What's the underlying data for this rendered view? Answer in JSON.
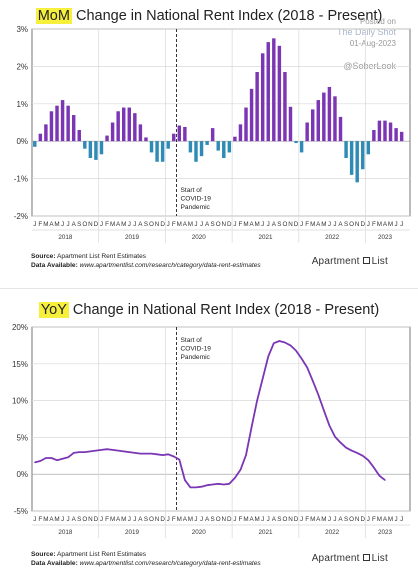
{
  "mom": {
    "title_highlight": "MoM",
    "title_rest": " Change in National Rent Index (2018 - Present)",
    "credit": [
      "Posted on",
      "The Daily Shot",
      "01-Aug-2023"
    ],
    "handle": "@SoberLook",
    "source_line1_bold": "Source:",
    "source_line1": " Apartment List Rent Estimates",
    "source_line2_bold": "Data Available:",
    "source_line2": " www.apartmentlist.com/research/category/data-rent-estimates",
    "logo_left": "Apartment",
    "logo_right": "List"
  },
  "yoy": {
    "title_highlight": "YoY",
    "title_rest": " Change in National Rent Index (2018 - Present)",
    "source_line1_bold": "Source:",
    "source_line1": " Apartment List Rent Estimates",
    "source_line2_bold": "Data Available:",
    "source_line2": " www.apartmentlist.com/research/category/data-rent-estimates",
    "logo_left": "Apartment",
    "logo_right": "List"
  },
  "colors": {
    "positive": "#7b36b4",
    "negative": "#2e8bb5",
    "line": "#7b36b4",
    "highlight": "#f6f03d",
    "grid": "#d9d9d9",
    "dashed": "#222222"
  },
  "chart_data": [
    {
      "type": "bar",
      "title": "MoM Change in National Rent Index (2018 - Present)",
      "annotation": [
        "Start of",
        "COVID-19",
        "Pandemic"
      ],
      "month_letters": [
        "J",
        "F",
        "M",
        "A",
        "M",
        "J",
        "J",
        "A",
        "S",
        "O",
        "N",
        "D"
      ],
      "years": [
        "2018",
        "2019",
        "2020",
        "2021",
        "2022",
        "2023"
      ],
      "x_start": "2018-01",
      "ylim": [
        -2,
        3
      ],
      "yticks": [
        -2,
        -1,
        0,
        1,
        2,
        3
      ],
      "ytick_labels": [
        "-2%",
        "-1%",
        "0%",
        "1%",
        "2%",
        "3%"
      ],
      "values": [
        -0.15,
        0.2,
        0.45,
        0.8,
        0.95,
        1.1,
        0.95,
        0.7,
        0.3,
        -0.2,
        -0.45,
        -0.5,
        -0.35,
        0.15,
        0.5,
        0.8,
        0.9,
        0.9,
        0.75,
        0.45,
        0.1,
        -0.3,
        -0.55,
        -0.55,
        -0.2,
        0.2,
        0.42,
        0.38,
        -0.3,
        -0.55,
        -0.4,
        -0.1,
        0.35,
        -0.25,
        -0.45,
        -0.3,
        0.12,
        0.45,
        0.9,
        1.4,
        1.85,
        2.35,
        2.65,
        2.75,
        2.55,
        1.85,
        0.92,
        -0.05,
        -0.3,
        0.5,
        0.85,
        1.1,
        1.3,
        1.45,
        1.2,
        0.65,
        -0.45,
        -0.9,
        -1.1,
        -0.75,
        -0.35,
        0.3,
        0.55,
        0.55,
        0.5,
        0.35,
        0.25
      ]
    },
    {
      "type": "line",
      "title": "YoY Change in National Rent Index (2018 - Present)",
      "annotation": [
        "Start of",
        "COVID-19",
        "Pandemic"
      ],
      "month_letters": [
        "J",
        "F",
        "M",
        "A",
        "M",
        "J",
        "J",
        "A",
        "S",
        "O",
        "N",
        "D"
      ],
      "years": [
        "2018",
        "2019",
        "2020",
        "2021",
        "2022",
        "2023"
      ],
      "x_start": "2018-01",
      "ylim": [
        -5,
        20
      ],
      "yticks": [
        -5,
        0,
        5,
        10,
        15,
        20
      ],
      "ytick_labels": [
        "-5%",
        "0%",
        "5%",
        "10%",
        "15%",
        "20%"
      ],
      "values": [
        1.6,
        1.8,
        2.2,
        2.2,
        1.9,
        2.1,
        2.3,
        2.9,
        3.0,
        3.0,
        3.1,
        3.2,
        3.3,
        3.4,
        3.3,
        3.2,
        3.1,
        3.0,
        2.9,
        2.8,
        2.8,
        2.8,
        2.7,
        2.6,
        2.7,
        2.4,
        2.0,
        -0.8,
        -1.8,
        -1.8,
        -1.7,
        -1.5,
        -1.4,
        -1.3,
        -1.4,
        -1.3,
        -0.5,
        0.6,
        2.6,
        6.4,
        10.0,
        13.0,
        16.0,
        17.8,
        18.1,
        17.9,
        17.5,
        16.8,
        15.7,
        14.5,
        12.7,
        10.8,
        8.7,
        6.6,
        5.1,
        4.3,
        3.6,
        3.2,
        2.9,
        2.5,
        1.9,
        0.9,
        -0.2,
        -0.8
      ]
    }
  ]
}
